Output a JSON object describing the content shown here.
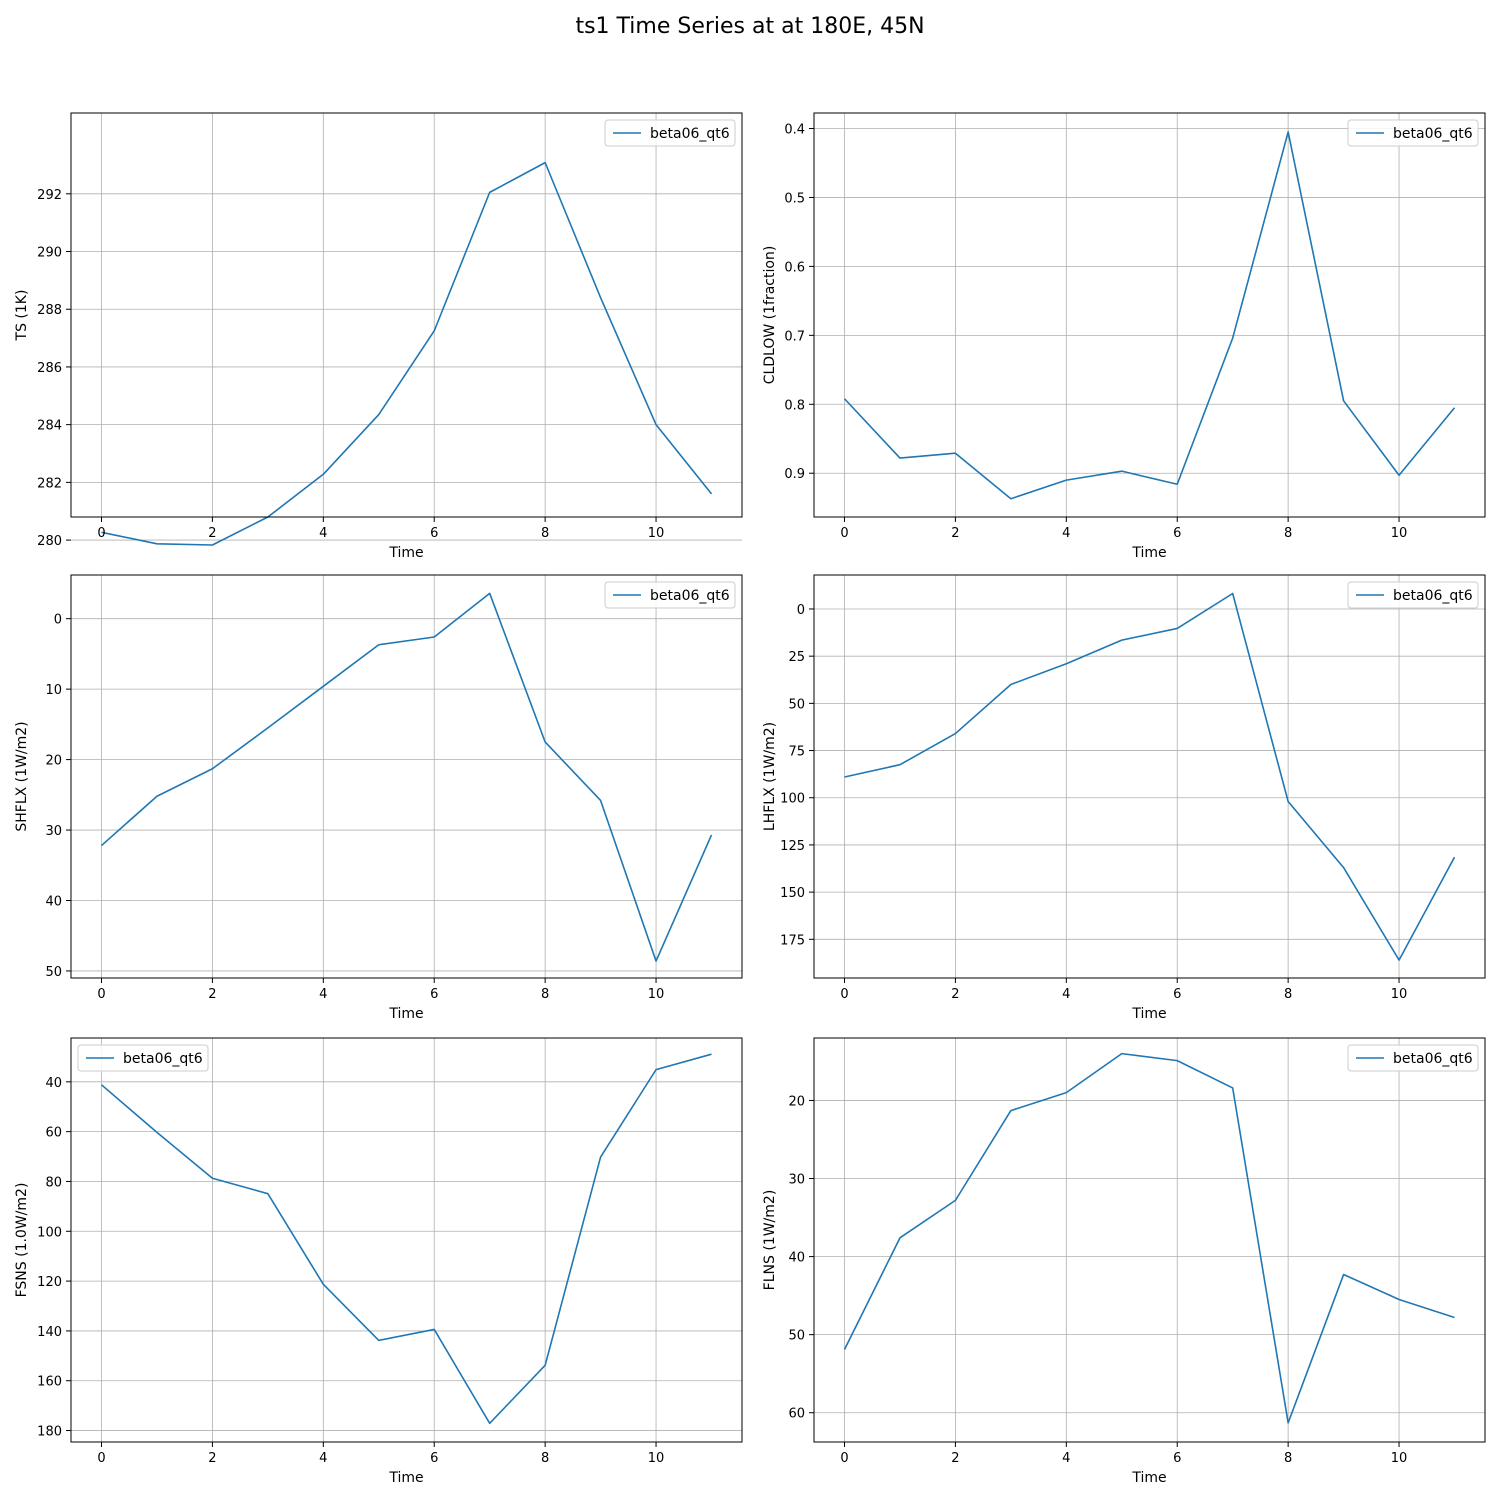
{
  "figure": {
    "title": "ts1 Time Series at at 180E, 45N"
  },
  "colors": {
    "line": "#1f77b4",
    "grid": "#b0b0b0",
    "axes": "#000000",
    "legend_border": "#cccccc"
  },
  "chart_data": [
    {
      "type": "line",
      "xlabel": "Time",
      "ylabel": "TS (1K)",
      "x": [
        0,
        1,
        2,
        3,
        4,
        5,
        6,
        7,
        8,
        9,
        10,
        11
      ],
      "xlim": [
        -0.55,
        11.55
      ],
      "xticks": [
        0,
        2,
        4,
        6,
        8,
        10
      ],
      "ylim": [
        280.8,
        294.8
      ],
      "y_inverted": true,
      "yticks": [
        280,
        282,
        284,
        286,
        288,
        290,
        292
      ],
      "ytick_labels": [
        "280",
        "282",
        "284",
        "286",
        "288",
        "290",
        "292"
      ],
      "grid": true,
      "legend": "top-right",
      "series": [
        {
          "name": "beta06_qt6",
          "values": [
            280.27,
            279.87,
            279.83,
            280.8,
            282.28,
            284.35,
            287.25,
            292.05,
            293.08,
            288.4,
            284.0,
            281.6
          ]
        }
      ]
    },
    {
      "type": "line",
      "xlabel": "Time",
      "ylabel": "CLDLOW (1fraction)",
      "x": [
        0,
        1,
        2,
        3,
        4,
        5,
        6,
        7,
        8,
        9,
        10,
        11
      ],
      "xlim": [
        -0.55,
        11.55
      ],
      "xticks": [
        0,
        2,
        4,
        6,
        8,
        10
      ],
      "ylim": [
        0.9635,
        0.3775
      ],
      "y_inverted": true,
      "yticks": [
        0.4,
        0.5,
        0.6,
        0.7,
        0.8,
        0.9
      ],
      "ytick_labels": [
        "0.4",
        "0.5",
        "0.6",
        "0.7",
        "0.8",
        "0.9"
      ],
      "grid": true,
      "legend": "top-right",
      "series": [
        {
          "name": "beta06_qt6",
          "values": [
            0.792,
            0.878,
            0.871,
            0.937,
            0.91,
            0.897,
            0.916,
            0.704,
            0.405,
            0.795,
            0.903,
            0.805
          ]
        }
      ]
    },
    {
      "type": "line",
      "xlabel": "Time",
      "ylabel": "SHFLX (1W/m2)",
      "x": [
        0,
        1,
        2,
        3,
        4,
        5,
        6,
        7,
        8,
        9,
        10,
        11
      ],
      "xlim": [
        -0.55,
        11.55
      ],
      "xticks": [
        0,
        2,
        4,
        6,
        8,
        10
      ],
      "ylim": [
        51.0,
        -6.2
      ],
      "y_inverted": true,
      "yticks": [
        0,
        10,
        20,
        30,
        40,
        50
      ],
      "ytick_labels": [
        "0",
        "10",
        "20",
        "30",
        "40",
        "50"
      ],
      "grid": true,
      "legend": "top-right",
      "series": [
        {
          "name": "beta06_qt6",
          "values": [
            32.2,
            25.2,
            21.3,
            15.5,
            9.6,
            3.7,
            2.6,
            -3.6,
            17.5,
            25.8,
            48.6,
            30.7
          ]
        }
      ]
    },
    {
      "type": "line",
      "xlabel": "Time",
      "ylabel": "LHFLX (1W/m2)",
      "x": [
        0,
        1,
        2,
        3,
        4,
        5,
        6,
        7,
        8,
        9,
        10,
        11
      ],
      "xlim": [
        -0.55,
        11.55
      ],
      "xticks": [
        0,
        2,
        4,
        6,
        8,
        10
      ],
      "ylim": [
        195.5,
        -18.0
      ],
      "y_inverted": true,
      "yticks": [
        0,
        25,
        50,
        75,
        100,
        125,
        150,
        175
      ],
      "ytick_labels": [
        "0",
        "25",
        "50",
        "75",
        "100",
        "125",
        "150",
        "175"
      ],
      "grid": true,
      "legend": "top-right",
      "series": [
        {
          "name": "beta06_qt6",
          "values": [
            89.0,
            82.5,
            66.0,
            40.0,
            29.0,
            16.5,
            10.3,
            -8.2,
            102.0,
            137.0,
            186.0,
            131.5
          ]
        }
      ]
    },
    {
      "type": "line",
      "xlabel": "Time",
      "ylabel": "FSNS (1.0W/m2)",
      "x": [
        0,
        1,
        2,
        3,
        4,
        5,
        6,
        7,
        8,
        9,
        10,
        11
      ],
      "xlim": [
        -0.55,
        11.55
      ],
      "xticks": [
        0,
        2,
        4,
        6,
        8,
        10
      ],
      "ylim": [
        184.6,
        22.4
      ],
      "y_inverted": true,
      "yticks": [
        40,
        60,
        80,
        100,
        120,
        140,
        160,
        180
      ],
      "ytick_labels": [
        "40",
        "60",
        "80",
        "100",
        "120",
        "140",
        "160",
        "180"
      ],
      "grid": true,
      "legend": "top-left",
      "series": [
        {
          "name": "beta06_qt6",
          "values": [
            41.2,
            60.3,
            78.7,
            84.9,
            121.3,
            143.8,
            139.4,
            177.1,
            153.8,
            70.2,
            35.1,
            28.9
          ]
        }
      ]
    },
    {
      "type": "line",
      "xlabel": "Time",
      "ylabel": "FLNS (1W/m2)",
      "x": [
        0,
        1,
        2,
        3,
        4,
        5,
        6,
        7,
        8,
        9,
        10,
        11
      ],
      "xlim": [
        -0.55,
        11.55
      ],
      "xticks": [
        0,
        2,
        4,
        6,
        8,
        10
      ],
      "ylim": [
        63.75,
        12.0
      ],
      "y_inverted": true,
      "yticks": [
        20,
        30,
        40,
        50,
        60
      ],
      "ytick_labels": [
        "20",
        "30",
        "40",
        "50",
        "60"
      ],
      "grid": true,
      "legend": "top-right",
      "series": [
        {
          "name": "beta06_qt6",
          "values": [
            51.9,
            37.6,
            32.8,
            21.3,
            19.0,
            14.0,
            14.9,
            18.4,
            61.3,
            42.3,
            45.5,
            47.8
          ]
        }
      ]
    }
  ]
}
